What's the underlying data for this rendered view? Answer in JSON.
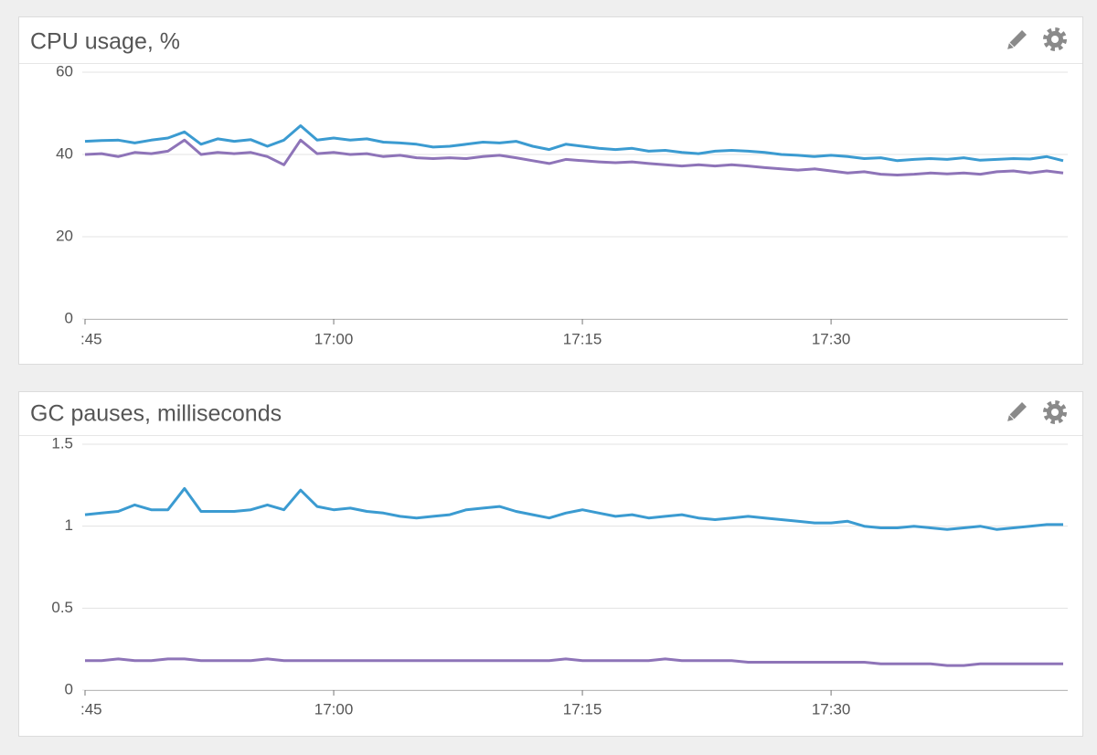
{
  "chart_data": [
    {
      "type": "line",
      "title": "CPU usage, %",
      "x": [
        "16:45",
        "16:46",
        "16:47",
        "16:48",
        "16:49",
        "16:50",
        "16:51",
        "16:52",
        "16:53",
        "16:54",
        "16:55",
        "16:56",
        "16:57",
        "16:58",
        "16:59",
        "17:00",
        "17:01",
        "17:02",
        "17:03",
        "17:04",
        "17:05",
        "17:06",
        "17:07",
        "17:08",
        "17:09",
        "17:10",
        "17:11",
        "17:12",
        "17:13",
        "17:14",
        "17:15",
        "17:16",
        "17:17",
        "17:18",
        "17:19",
        "17:20",
        "17:21",
        "17:22",
        "17:23",
        "17:24",
        "17:25",
        "17:26",
        "17:27",
        "17:28",
        "17:29",
        "17:30",
        "17:31",
        "17:32",
        "17:33",
        "17:34",
        "17:35",
        "17:36",
        "17:37",
        "17:38",
        "17:39",
        "17:40",
        "17:41",
        "17:42",
        "17:43",
        "17:44"
      ],
      "series": [
        {
          "color": "#3b9bd1",
          "values": [
            43.2,
            43.4,
            43.5,
            42.8,
            43.5,
            44.0,
            45.5,
            42.5,
            43.8,
            43.2,
            43.6,
            42.0,
            43.5,
            47.0,
            43.5,
            44.0,
            43.5,
            43.8,
            43.0,
            42.8,
            42.5,
            41.8,
            42.0,
            42.5,
            43.0,
            42.8,
            43.2,
            42.0,
            41.2,
            42.5,
            42.0,
            41.5,
            41.2,
            41.5,
            40.8,
            41.0,
            40.5,
            40.2,
            40.8,
            41.0,
            40.8,
            40.5,
            40.0,
            39.8,
            39.5,
            39.8,
            39.5,
            39.0,
            39.2,
            38.5,
            38.8,
            39.0,
            38.8,
            39.2,
            38.6,
            38.8,
            39.0,
            38.9,
            39.5,
            38.5
          ]
        },
        {
          "color": "#8e74b8",
          "values": [
            40.0,
            40.2,
            39.5,
            40.5,
            40.2,
            40.8,
            43.5,
            40.0,
            40.5,
            40.2,
            40.5,
            39.5,
            37.5,
            43.5,
            40.2,
            40.5,
            40.0,
            40.2,
            39.5,
            39.8,
            39.2,
            39.0,
            39.2,
            39.0,
            39.5,
            39.8,
            39.2,
            38.5,
            37.8,
            38.8,
            38.5,
            38.2,
            38.0,
            38.2,
            37.8,
            37.5,
            37.2,
            37.5,
            37.2,
            37.5,
            37.2,
            36.8,
            36.5,
            36.2,
            36.5,
            36.0,
            35.5,
            35.8,
            35.2,
            35.0,
            35.2,
            35.5,
            35.3,
            35.5,
            35.2,
            35.8,
            36.0,
            35.5,
            36.0,
            35.5
          ]
        }
      ],
      "xlim": [
        "16:45",
        "17:44"
      ],
      "xticks": [
        {
          "value": "16:45",
          "label": ":45"
        },
        "17:00",
        "17:15",
        "17:30"
      ],
      "ylim": [
        0,
        60
      ],
      "yticks": [
        0,
        20,
        40,
        60
      ],
      "grid": true
    },
    {
      "type": "line",
      "title": "GC pauses, milliseconds",
      "x": [
        "16:45",
        "16:46",
        "16:47",
        "16:48",
        "16:49",
        "16:50",
        "16:51",
        "16:52",
        "16:53",
        "16:54",
        "16:55",
        "16:56",
        "16:57",
        "16:58",
        "16:59",
        "17:00",
        "17:01",
        "17:02",
        "17:03",
        "17:04",
        "17:05",
        "17:06",
        "17:07",
        "17:08",
        "17:09",
        "17:10",
        "17:11",
        "17:12",
        "17:13",
        "17:14",
        "17:15",
        "17:16",
        "17:17",
        "17:18",
        "17:19",
        "17:20",
        "17:21",
        "17:22",
        "17:23",
        "17:24",
        "17:25",
        "17:26",
        "17:27",
        "17:28",
        "17:29",
        "17:30",
        "17:31",
        "17:32",
        "17:33",
        "17:34",
        "17:35",
        "17:36",
        "17:37",
        "17:38",
        "17:39",
        "17:40",
        "17:41",
        "17:42",
        "17:43",
        "17:44"
      ],
      "series": [
        {
          "color": "#3b9bd1",
          "values": [
            1.07,
            1.08,
            1.09,
            1.13,
            1.1,
            1.1,
            1.23,
            1.09,
            1.09,
            1.09,
            1.1,
            1.13,
            1.1,
            1.22,
            1.12,
            1.1,
            1.11,
            1.09,
            1.08,
            1.06,
            1.05,
            1.06,
            1.07,
            1.1,
            1.11,
            1.12,
            1.09,
            1.07,
            1.05,
            1.08,
            1.1,
            1.08,
            1.06,
            1.07,
            1.05,
            1.06,
            1.07,
            1.05,
            1.04,
            1.05,
            1.06,
            1.05,
            1.04,
            1.03,
            1.02,
            1.02,
            1.03,
            1.0,
            0.99,
            0.99,
            1.0,
            0.99,
            0.98,
            0.99,
            1.0,
            0.98,
            0.99,
            1.0,
            1.01,
            1.01
          ]
        },
        {
          "color": "#8e74b8",
          "values": [
            0.18,
            0.18,
            0.19,
            0.18,
            0.18,
            0.19,
            0.19,
            0.18,
            0.18,
            0.18,
            0.18,
            0.19,
            0.18,
            0.18,
            0.18,
            0.18,
            0.18,
            0.18,
            0.18,
            0.18,
            0.18,
            0.18,
            0.18,
            0.18,
            0.18,
            0.18,
            0.18,
            0.18,
            0.18,
            0.19,
            0.18,
            0.18,
            0.18,
            0.18,
            0.18,
            0.19,
            0.18,
            0.18,
            0.18,
            0.18,
            0.17,
            0.17,
            0.17,
            0.17,
            0.17,
            0.17,
            0.17,
            0.17,
            0.16,
            0.16,
            0.16,
            0.16,
            0.15,
            0.15,
            0.16,
            0.16,
            0.16,
            0.16,
            0.16,
            0.16
          ]
        }
      ],
      "xlim": [
        "16:45",
        "17:44"
      ],
      "xticks": [
        {
          "value": "16:45",
          "label": ":45"
        },
        "17:00",
        "17:15",
        "17:30"
      ],
      "ylim": [
        0,
        1.5
      ],
      "yticks": [
        0,
        0.5,
        1,
        1.5
      ],
      "grid": true
    }
  ]
}
